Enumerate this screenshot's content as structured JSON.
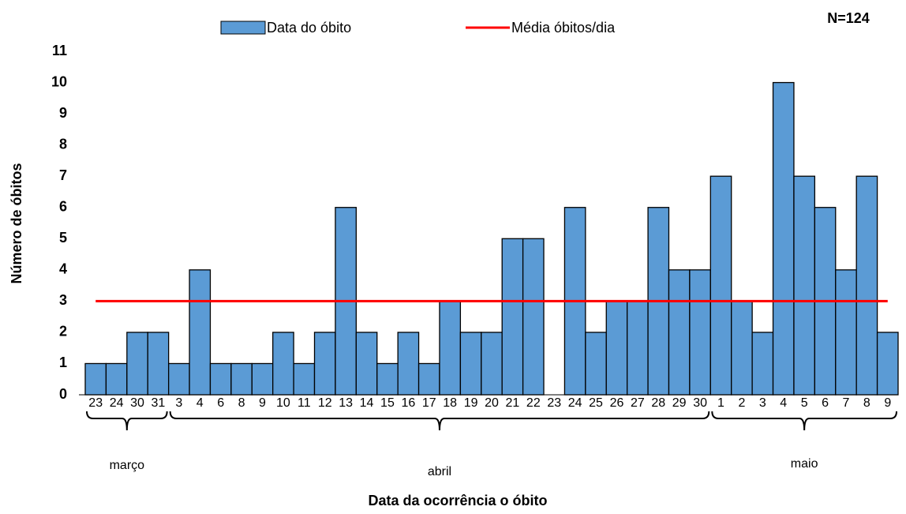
{
  "chart_data": {
    "type": "bar",
    "title": "N=124",
    "xlabel": "Data da ocorrência o óbito",
    "ylabel": "Número de óbitos",
    "categories": [
      "23",
      "24",
      "30",
      "31",
      "3",
      "4",
      "6",
      "8",
      "9",
      "10",
      "11",
      "12",
      "13",
      "14",
      "15",
      "16",
      "17",
      "18",
      "19",
      "20",
      "21",
      "22",
      "23",
      "24",
      "25",
      "26",
      "27",
      "28",
      "29",
      "30",
      "1",
      "2",
      "3",
      "4",
      "5",
      "6",
      "7",
      "8",
      "9"
    ],
    "groups": [
      {
        "label": "março",
        "count": 4
      },
      {
        "label": "abril",
        "count": 26
      },
      {
        "label": "maio",
        "count": 9
      }
    ],
    "series": [
      {
        "name": "Data do óbito",
        "type": "bar",
        "color": "#5b9bd5",
        "values": [
          1,
          1,
          2,
          2,
          1,
          4,
          1,
          1,
          1,
          2,
          1,
          2,
          6,
          2,
          1,
          2,
          1,
          3,
          2,
          2,
          5,
          5,
          0,
          6,
          2,
          3,
          3,
          6,
          4,
          4,
          7,
          3,
          2,
          10,
          7,
          6,
          4,
          7,
          2
        ]
      },
      {
        "name": "Média óbitos/dia",
        "type": "line",
        "color": "#ff0000",
        "values": [
          3,
          3,
          3,
          3,
          3,
          3,
          3,
          3,
          3,
          3,
          3,
          3,
          3,
          3,
          3,
          3,
          3,
          3,
          3,
          3,
          3,
          3,
          3,
          3,
          3,
          3,
          3,
          3,
          3,
          3,
          3,
          3,
          3,
          3,
          3,
          3,
          3,
          3,
          3
        ]
      }
    ],
    "ylim": [
      0,
      11
    ],
    "yticks": [
      0,
      1,
      2,
      3,
      4,
      5,
      6,
      7,
      8,
      9,
      10,
      11
    ],
    "grid": false,
    "legend": "top"
  }
}
